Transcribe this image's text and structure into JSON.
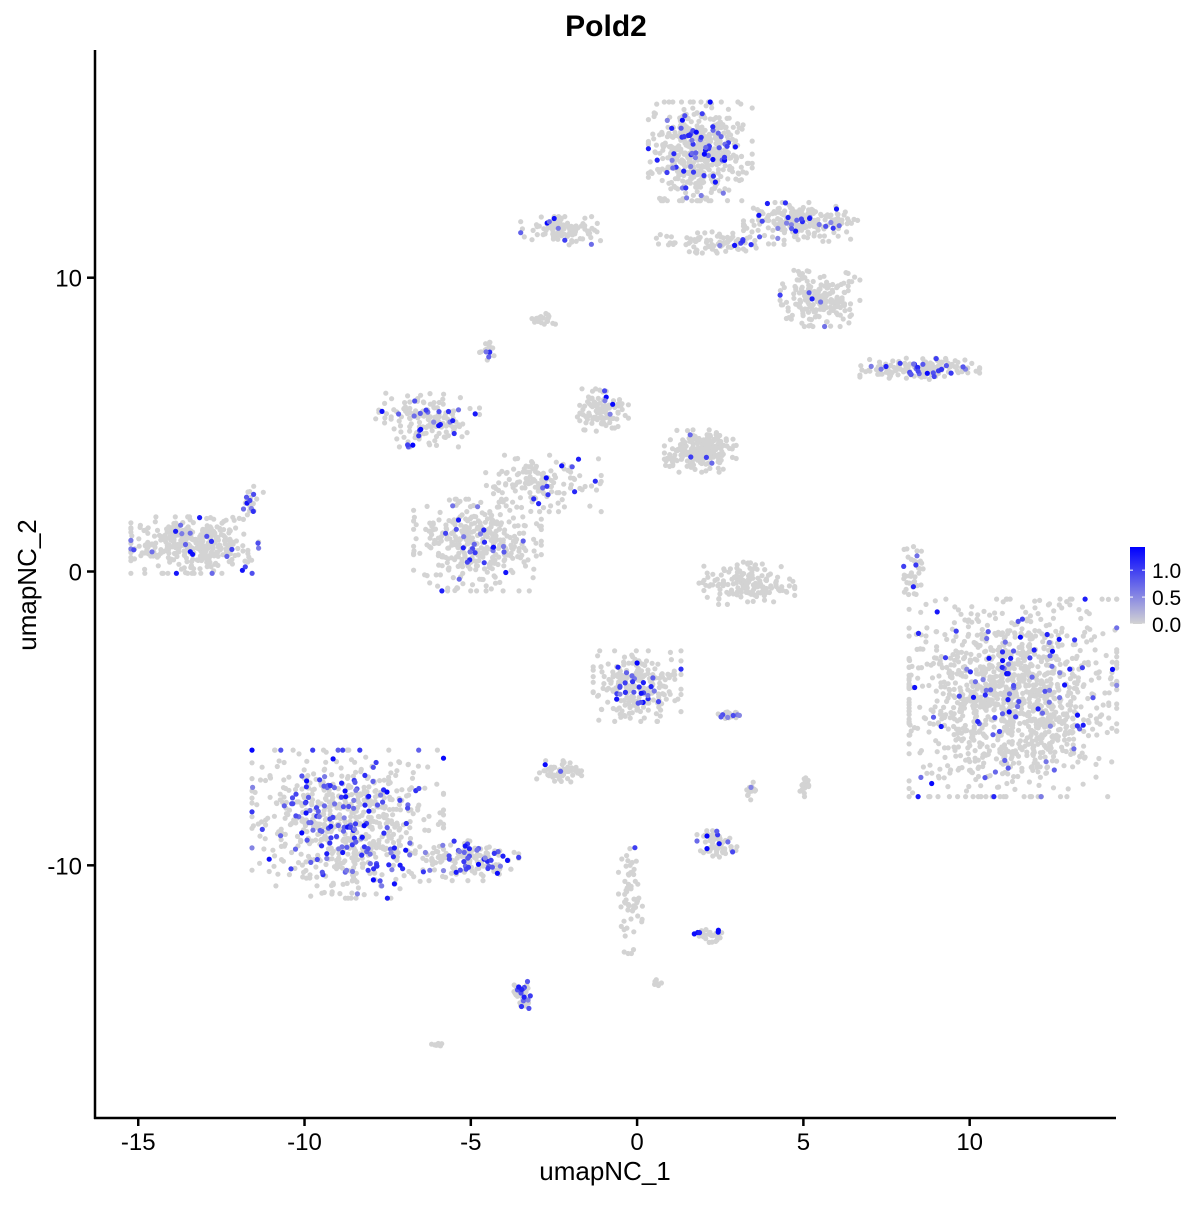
{
  "chart_data": {
    "type": "scatter",
    "title": "Pold2",
    "xlabel": "umapNC_1",
    "ylabel": "umapNC_2",
    "xlim": [
      -16.3,
      14.4
    ],
    "ylim": [
      -18.6,
      17.75
    ],
    "xticks": [
      -15,
      -10,
      -5,
      0,
      5,
      10
    ],
    "yticks": [
      -10,
      0,
      10
    ],
    "grid": false,
    "legend": {
      "placement": "right",
      "type": "colorbar",
      "range": [
        0,
        1.43
      ],
      "ticks": [
        "0.0",
        "0.5",
        "1.0"
      ],
      "color_low": "#d3d3d3",
      "color_high": "#0000ff"
    },
    "clusters": [
      {
        "center": [
          1.9,
          14.3
        ],
        "spread": [
          1.3,
          1.4
        ],
        "cells": 520,
        "expressing_fraction": 0.1
      },
      {
        "center": [
          5.0,
          11.9
        ],
        "spread": [
          1.5,
          0.55
        ],
        "cells": 220,
        "expressing_fraction": 0.08
      },
      {
        "center": [
          5.5,
          9.3
        ],
        "spread": [
          1.0,
          0.8
        ],
        "cells": 200,
        "expressing_fraction": 0.05
      },
      {
        "center": [
          2.5,
          11.2
        ],
        "spread": [
          1.6,
          0.3
        ],
        "cells": 90,
        "expressing_fraction": 0.12
      },
      {
        "center": [
          -2.3,
          11.6
        ],
        "spread": [
          1.0,
          0.4
        ],
        "cells": 110,
        "expressing_fraction": 0.1
      },
      {
        "center": [
          -2.8,
          8.6
        ],
        "spread": [
          0.3,
          0.15
        ],
        "cells": 20,
        "expressing_fraction": 0.0
      },
      {
        "center": [
          -4.5,
          7.5
        ],
        "spread": [
          0.2,
          0.25
        ],
        "cells": 20,
        "expressing_fraction": 0.2
      },
      {
        "center": [
          8.5,
          6.9
        ],
        "spread": [
          1.5,
          0.3
        ],
        "cells": 180,
        "expressing_fraction": 0.15
      },
      {
        "center": [
          -6.3,
          5.2
        ],
        "spread": [
          1.3,
          0.8
        ],
        "cells": 170,
        "expressing_fraction": 0.12
      },
      {
        "center": [
          1.9,
          4.1
        ],
        "spread": [
          0.9,
          0.6
        ],
        "cells": 220,
        "expressing_fraction": 0.02
      },
      {
        "center": [
          -1.1,
          5.5
        ],
        "spread": [
          0.7,
          0.6
        ],
        "cells": 100,
        "expressing_fraction": 0.03
      },
      {
        "center": [
          -3.0,
          3.0
        ],
        "spread": [
          1.6,
          0.8
        ],
        "cells": 150,
        "expressing_fraction": 0.06
      },
      {
        "center": [
          -4.8,
          0.9
        ],
        "spread": [
          1.6,
          1.3
        ],
        "cells": 380,
        "expressing_fraction": 0.08
      },
      {
        "center": [
          -13.3,
          0.9
        ],
        "spread": [
          1.6,
          0.8
        ],
        "cells": 380,
        "expressing_fraction": 0.05
      },
      {
        "center": [
          -11.6,
          2.3
        ],
        "spread": [
          0.3,
          0.5
        ],
        "cells": 25,
        "expressing_fraction": 0.4
      },
      {
        "center": [
          3.3,
          -0.4
        ],
        "spread": [
          1.2,
          0.6
        ],
        "cells": 160,
        "expressing_fraction": 0.0
      },
      {
        "center": [
          8.3,
          0.0
        ],
        "spread": [
          0.25,
          0.9
        ],
        "cells": 40,
        "expressing_fraction": 0.15
      },
      {
        "center": [
          11.3,
          -4.3
        ],
        "spread": [
          2.6,
          2.8
        ],
        "cells": 1300,
        "expressing_fraction": 0.07
      },
      {
        "center": [
          0.0,
          -3.9
        ],
        "spread": [
          1.1,
          1.0
        ],
        "cells": 260,
        "expressing_fraction": 0.1
      },
      {
        "center": [
          -8.7,
          -8.6
        ],
        "spread": [
          2.4,
          2.1
        ],
        "cells": 760,
        "expressing_fraction": 0.2
      },
      {
        "center": [
          -5.0,
          -9.8
        ],
        "spread": [
          1.2,
          0.6
        ],
        "cells": 140,
        "expressing_fraction": 0.3
      },
      {
        "center": [
          -2.3,
          -6.8
        ],
        "spread": [
          0.6,
          0.3
        ],
        "cells": 60,
        "expressing_fraction": 0.05
      },
      {
        "center": [
          2.8,
          -4.9
        ],
        "spread": [
          0.3,
          0.1
        ],
        "cells": 20,
        "expressing_fraction": 0.2
      },
      {
        "center": [
          3.4,
          -7.5
        ],
        "spread": [
          0.15,
          0.3
        ],
        "cells": 15,
        "expressing_fraction": 0.2
      },
      {
        "center": [
          5.1,
          -7.3
        ],
        "spread": [
          0.2,
          0.3
        ],
        "cells": 20,
        "expressing_fraction": 0.05
      },
      {
        "center": [
          2.4,
          -9.3
        ],
        "spread": [
          0.5,
          0.4
        ],
        "cells": 70,
        "expressing_fraction": 0.15
      },
      {
        "center": [
          2.2,
          -12.4
        ],
        "spread": [
          0.4,
          0.2
        ],
        "cells": 30,
        "expressing_fraction": 0.15
      },
      {
        "center": [
          -0.2,
          -11.2
        ],
        "spread": [
          0.3,
          1.5
        ],
        "cells": 60,
        "expressing_fraction": 0.05
      },
      {
        "center": [
          -3.4,
          -14.4
        ],
        "spread": [
          0.25,
          0.5
        ],
        "cells": 50,
        "expressing_fraction": 0.3
      },
      {
        "center": [
          0.6,
          -14.0
        ],
        "spread": [
          0.15,
          0.1
        ],
        "cells": 8,
        "expressing_fraction": 0.0
      },
      {
        "center": [
          -6.0,
          -16.1
        ],
        "spread": [
          0.15,
          0.1
        ],
        "cells": 8,
        "expressing_fraction": 0.0
      }
    ]
  }
}
